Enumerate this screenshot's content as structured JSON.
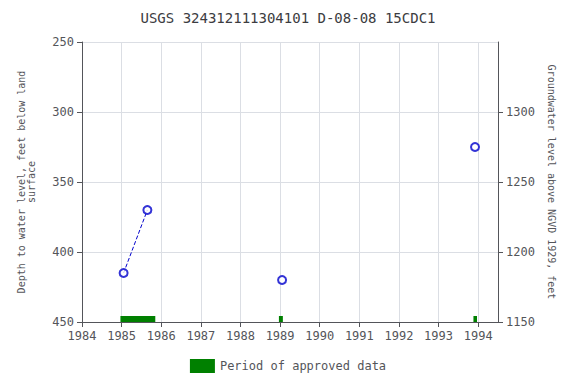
{
  "chart_data": {
    "type": "scatter",
    "title": "USGS 324312111304101 D-08-08 15CDC1",
    "y_label": "Depth to water level, feet below land\nsurface",
    "y2_label": "Groundwater level above NGVD 1929, feet",
    "xlim": [
      1984,
      1994.5
    ],
    "xticks": [
      1984,
      1985,
      1986,
      1987,
      1988,
      1989,
      1990,
      1991,
      1992,
      1993,
      1994
    ],
    "ylim": [
      450,
      250
    ],
    "yticks": [
      250,
      300,
      350,
      400,
      450
    ],
    "y2lim": [
      1150,
      1350
    ],
    "y2ticks": [
      1150,
      1200,
      1250,
      1300
    ],
    "grid": true,
    "legend": "bottom",
    "series": [
      {
        "type": "scatter",
        "x": [
          1985.05,
          1985.65,
          1989.05,
          1993.92
        ],
        "values": [
          415,
          370,
          420,
          325
        ],
        "color": "#0000cc",
        "marker": "open_circle"
      },
      {
        "type": "line",
        "x": [
          1985.05,
          1985.65
        ],
        "values": [
          415,
          370
        ],
        "color": "#0000cc",
        "line_style": "dashed"
      },
      {
        "type": "bar",
        "name": "Period of approved data",
        "x_start": [
          1984.97,
          1988.97,
          1993.88
        ],
        "x_end": [
          1985.85,
          1989.07,
          1993.97
        ],
        "color": "#008000"
      }
    ]
  }
}
